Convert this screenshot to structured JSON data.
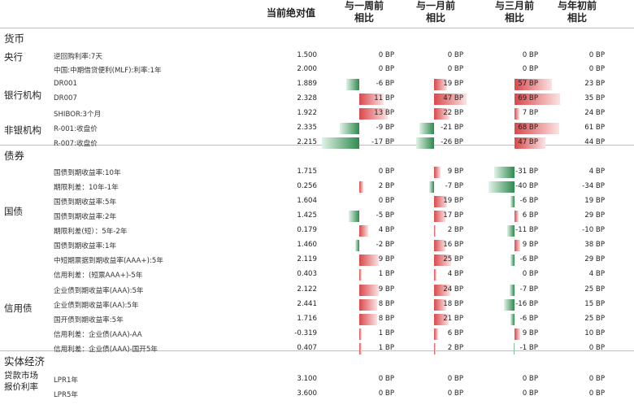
{
  "headers": {
    "current": "当前绝对值",
    "week": [
      "与一周前",
      "相比"
    ],
    "month": [
      "与一月前",
      "相比"
    ],
    "month3": [
      "与三月前",
      "相比"
    ],
    "ytd": [
      "与年初前",
      "相比"
    ]
  },
  "sections": {
    "money": "货币",
    "bond": "债券",
    "economy": "实体经济"
  },
  "groups": {
    "central": "央行",
    "bank": "银行机构",
    "nonbank": "非银机构",
    "govbond": "国债",
    "credit": "信用债",
    "lpr": [
      "贷款市场",
      "报价利率"
    ]
  },
  "colors": {
    "up": "#d9484b",
    "down": "#2e8a4e"
  },
  "rows": [
    {
      "label": "逆回购利率:7天",
      "cur": "1.500",
      "w": "0 BP",
      "m": "0 BP",
      "q": "0 BP",
      "y": "0 BP",
      "wv": 0,
      "mv": 0,
      "qv": 0
    },
    {
      "label": "中国:中期借贷便利(MLF):利率:1年",
      "cur": "2.000",
      "w": "0 BP",
      "m": "0 BP",
      "q": "0 BP",
      "y": "0 BP",
      "wv": 0,
      "mv": 0,
      "qv": 0
    },
    {
      "label": "DR001",
      "cur": "1.889",
      "w": "-6 BP",
      "m": "19 BP",
      "q": "57 BP",
      "y": "23 BP",
      "wv": -6,
      "mv": 19,
      "qv": 57
    },
    {
      "label": "DR007",
      "cur": "2.328",
      "w": "11 BP",
      "m": "47 BP",
      "q": "69 BP",
      "y": "35 BP",
      "wv": 11,
      "mv": 47,
      "qv": 69
    },
    {
      "label": "SHIBOR:3个月",
      "cur": "1.922",
      "w": "13 BP",
      "m": "22 BP",
      "q": "7 BP",
      "y": "24 BP",
      "wv": 13,
      "mv": 22,
      "qv": 7
    },
    {
      "label": "R-001:收盘价",
      "cur": "2.335",
      "w": "-9 BP",
      "m": "-21 BP",
      "q": "68 BP",
      "y": "61 BP",
      "wv": -9,
      "mv": -21,
      "qv": 68
    },
    {
      "label": "R-007:收盘价",
      "cur": "2.215",
      "w": "-17 BP",
      "m": "-26 BP",
      "q": "47 BP",
      "y": "44 BP",
      "wv": -17,
      "mv": -26,
      "qv": 47
    },
    {
      "label": "国债到期收益率:10年",
      "cur": "1.715",
      "w": "0 BP",
      "m": "9 BP",
      "q": "-31 BP",
      "y": "4 BP",
      "wv": 0,
      "mv": 9,
      "qv": -31
    },
    {
      "label": "期限利差：10年-1年",
      "cur": "0.256",
      "w": "2 BP",
      "m": "-7 BP",
      "q": "-40 BP",
      "y": "-34 BP",
      "wv": 2,
      "mv": -7,
      "qv": -40
    },
    {
      "label": "国债到期收益率:5年",
      "cur": "1.604",
      "w": "0 BP",
      "m": "19 BP",
      "q": "-6 BP",
      "y": "19 BP",
      "wv": 0,
      "mv": 19,
      "qv": -6
    },
    {
      "label": "国债到期收益率:2年",
      "cur": "1.425",
      "w": "-5 BP",
      "m": "17 BP",
      "q": "6 BP",
      "y": "29 BP",
      "wv": -5,
      "mv": 17,
      "qv": 6
    },
    {
      "label": "期限利差(短）：5年-2年",
      "cur": "0.179",
      "w": "4 BP",
      "m": "2 BP",
      "q": "-11 BP",
      "y": "-10 BP",
      "wv": 4,
      "mv": 2,
      "qv": -11
    },
    {
      "label": "国债到期收益率:1年",
      "cur": "1.460",
      "w": "-2 BP",
      "m": "16 BP",
      "q": "9 BP",
      "y": "38 BP",
      "wv": -2,
      "mv": 16,
      "qv": 9
    },
    {
      "label": "中短期票据到期收益率(AAA+):5年",
      "cur": "2.119",
      "w": "9 BP",
      "m": "25 BP",
      "q": "-6 BP",
      "y": "29 BP",
      "wv": 9,
      "mv": 25,
      "qv": -6
    },
    {
      "label": "信用利差：(短票AAA+)-5年",
      "cur": "0.403",
      "w": "1 BP",
      "m": "4 BP",
      "q": "0 BP",
      "y": "4 BP",
      "wv": 1,
      "mv": 4,
      "qv": 0
    },
    {
      "label": "企业债到期收益率(AAA):5年",
      "cur": "2.122",
      "w": "9 BP",
      "m": "24 BP",
      "q": "-7 BP",
      "y": "25 BP",
      "wv": 9,
      "mv": 24,
      "qv": -7
    },
    {
      "label": "企业债到期收益率(AA):5年",
      "cur": "2.441",
      "w": "8 BP",
      "m": "18 BP",
      "q": "-16 BP",
      "y": "15 BP",
      "wv": 8,
      "mv": 18,
      "qv": -16
    },
    {
      "label": "国开债到期收益率:5年",
      "cur": "1.716",
      "w": "8 BP",
      "m": "21 BP",
      "q": "-6 BP",
      "y": "25 BP",
      "wv": 8,
      "mv": 21,
      "qv": -6
    },
    {
      "label": "信用利差：企业债(AAA)-AA",
      "cur": "-0.319",
      "w": "1 BP",
      "m": "6 BP",
      "q": "9 BP",
      "y": "10 BP",
      "wv": 1,
      "mv": 6,
      "qv": 9
    },
    {
      "label": "信用利差：企业债(AAA)-国开5年",
      "cur": "0.407",
      "w": "1 BP",
      "m": "2 BP",
      "q": "-1 BP",
      "y": "0 BP",
      "wv": 1,
      "mv": 2,
      "qv": -1
    },
    {
      "label": "LPR1年",
      "cur": "3.100",
      "w": "0 BP",
      "m": "0 BP",
      "q": "0 BP",
      "y": "0 BP",
      "wv": 0,
      "mv": 0,
      "qv": 0
    },
    {
      "label": "LPR5年",
      "cur": "3.600",
      "w": "0 BP",
      "m": "0 BP",
      "q": "0 BP",
      "y": "0 BP",
      "wv": 0,
      "mv": 0,
      "qv": 0
    }
  ]
}
